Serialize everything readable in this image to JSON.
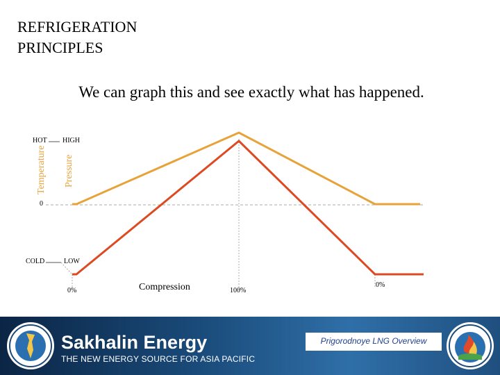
{
  "slide": {
    "title": "REFRIGERATION PRINCIPLES",
    "subtitle": "We can graph this and see exactly what has happened."
  },
  "diagram": {
    "temp_axis_label": "Temperature",
    "pressure_axis_label": "Pressure",
    "hot_label": "HOT",
    "high_label": "HIGH",
    "zero_label": "0",
    "cold_label": "COLD",
    "low_label": "LOW",
    "x_label": "Compression",
    "tick_start": "0%",
    "tick_mid": "100%",
    "tick_end": "0%",
    "colors": {
      "temperature": "#e8a23a",
      "pressure": "#dd4a22",
      "guide": "#aaaaaa"
    }
  },
  "footer": {
    "brand": "Sakhalin Energy",
    "tagline": "THE NEW ENERGY SOURCE FOR ASIA PACIFIC",
    "presentation": "Prigorodnoye LNG Overview"
  }
}
